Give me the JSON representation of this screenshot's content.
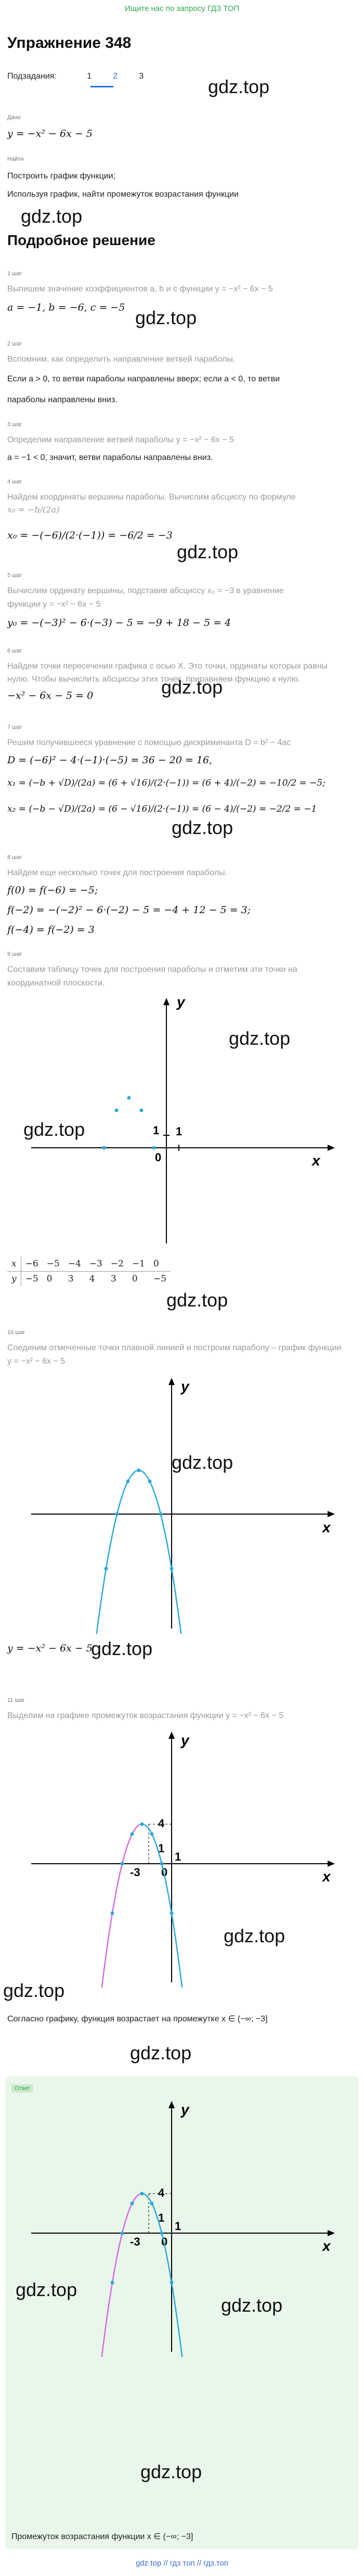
{
  "top_link": "Ищите нас по запросу ГДЗ ТОП",
  "title": "Упражнение 348",
  "subtasks": {
    "label": "Подзадания:",
    "items": [
      "1",
      "2",
      "3"
    ],
    "active": "2"
  },
  "watermark": "gdz.top",
  "given": {
    "tag": "Дано",
    "formula": "y = −x² − 6x − 5",
    "task_tag": "Найти",
    "task1": "Построить график функции;",
    "task2": "Используя график, найти промежуток возрастания функции"
  },
  "solution_title": "Подробное решение",
  "steps": [
    {
      "tag": "1 шаг",
      "text": "Выпишем значение коэффициентов a, b и c функции y = −x² − 6x − 5",
      "formula": "a = −1, b = −6, c = −5"
    },
    {
      "tag": "2 шаг",
      "text": "Вспомним, как определить направление ветвей параболы.",
      "text2": "Если a > 0, то ветви параболы направлены вверх; если a < 0, то ветви",
      "text3": "параболы направлены вниз."
    },
    {
      "tag": "3 шаг",
      "text": "Определим направление ветвей параболы y = −x² − 6x − 5",
      "text2": "a = −1 < 0, значит, ветви параболы направлены вниз."
    },
    {
      "tag": "4 шаг",
      "text": "Найдем координаты вершины параболы. Вычислим абсциссу по формуле",
      "formula_note": "x₀ = −b/(2a)",
      "formula": "x₀ = −(−6)/(2·(−1)) = −6/2 = −3"
    },
    {
      "tag": "5 шаг",
      "text": "Вычислим ординату вершины, подставив абсциссу x₀ = −3 в уравнение",
      "text2": "функции y = −x² − 6x − 5",
      "formula": "y₀ = −(−3)² − 6·(−3) − 5 = −9 + 18 − 5 = 4"
    },
    {
      "tag": "6 шаг",
      "text": "Найдем точки пересечения графика с осью X. Это точки, ординаты которых равны",
      "text2": "нулю. Чтобы вычислить абсциссы этих точек, приравняем функцию к нулю.",
      "formula": "−x² − 6x − 5 = 0"
    },
    {
      "tag": "7 шаг",
      "text": "Решим получившееся уравнение с помощью дискриминанта D = b² − 4ac",
      "f1": "D = (−6)² − 4·(−1)·(−5) = 36 − 20 = 16,",
      "f2": "x₁ = (−b + √D)/(2a) = (6 + √16)/(2·(−1)) = (6 + 4)/(−2) = −10/2 = −5;",
      "f3": "x₂ = (−b − √D)/(2a) = (6 − √16)/(2·(−1)) = (6 − 4)/(−2) = −2/2 = −1"
    },
    {
      "tag": "8 шаг",
      "text": "Найдем еще несколько точек для построения параболы.",
      "f1": "f(0) = f(−6) = −5;",
      "f2": "f(−2) = −(−2)² − 6·(−2) − 5 = −4 + 12 − 5 = 3;",
      "f3": "f(−4) = f(−2) = 3"
    },
    {
      "tag": "9 шаг",
      "text": "Составим таблицу точек для построения параболы и отметим эти точки на",
      "text2": "координатной плоскости."
    },
    {
      "tag": "10 шаг",
      "text": "Соединим отмеченные точки плавной линией и построим параболу – график функции",
      "text2": "y = −x² − 6x − 5",
      "caption": "y = −x² − 6x − 5"
    },
    {
      "tag": "11 шаг",
      "text": "Выделим на графике промежуток возрастания функции y = −x² − 6x − 5",
      "conclusion": "Согласно графику, функция возрастает на промежутке x ∈ (−∞; −3]"
    }
  ],
  "table": {
    "x_label": "x",
    "y_label": "y",
    "x": [
      "−6",
      "−5",
      "−4",
      "−3",
      "−2",
      "−1",
      "0"
    ],
    "y": [
      "−5",
      "0",
      "3",
      "4",
      "3",
      "0",
      "−5"
    ]
  },
  "graph": {
    "x_axis": "x",
    "y_axis": "y",
    "origin": "0",
    "one_x": "1",
    "one_y": "1",
    "four": "4",
    "minus_three": "-3",
    "curve_color": "#29a9d8",
    "highlight_color": "#d46be0",
    "point_color": "#29a9d8"
  },
  "answer": {
    "tag": "Ответ",
    "text": "Промежуток возрастания функции x ∈ (−∞; −3]"
  },
  "footer": "gdz top // гдз топ // гдз.топ"
}
